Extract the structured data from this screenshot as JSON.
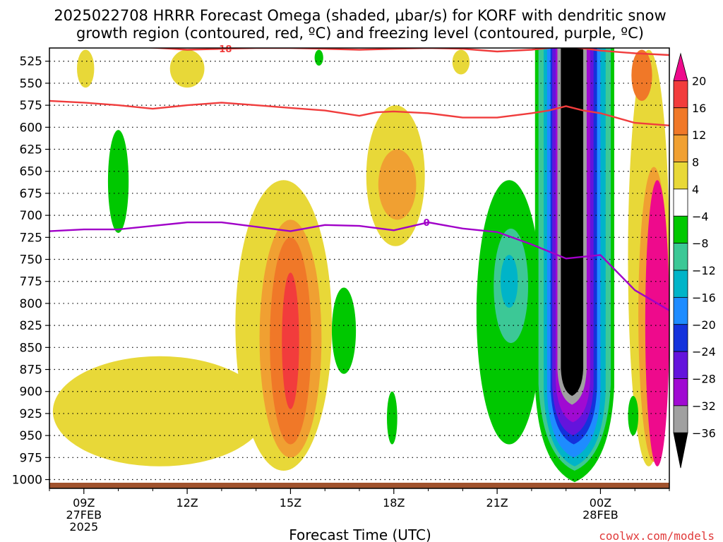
{
  "title": {
    "line1": "2025022708 HRRR Forecast Omega (shaded, μbar/s) for KORF with dendritic snow",
    "line2": "growth region (contoured, red, ºC) and freezing level (contoured, purple, ºC)"
  },
  "credit": "coolwx.com/models",
  "chart_data": {
    "type": "heatmap",
    "xlabel": "Forecast Time (UTC)",
    "x_range_hours": [
      -1.0,
      17.0
    ],
    "y_range_hpa": [
      1010,
      510
    ],
    "y_scale": "linear",
    "x_ticks": [
      {
        "x": 0,
        "lines": [
          "09Z",
          "27FEB",
          "2025"
        ]
      },
      {
        "x": 3,
        "lines": [
          "12Z"
        ]
      },
      {
        "x": 6,
        "lines": [
          "15Z"
        ]
      },
      {
        "x": 9,
        "lines": [
          "18Z"
        ]
      },
      {
        "x": 12,
        "lines": [
          "21Z"
        ]
      },
      {
        "x": 15,
        "lines": [
          "00Z",
          "28FEB"
        ]
      }
    ],
    "y_ticks": [
      525,
      550,
      575,
      600,
      625,
      650,
      675,
      700,
      725,
      750,
      775,
      800,
      825,
      850,
      875,
      900,
      925,
      950,
      975,
      1000
    ],
    "grid": "dotted horizontal at each pressure tick",
    "colorbar": {
      "levels": [
        "20",
        "16",
        "12",
        "8",
        "4",
        "−4",
        "−8",
        "−12",
        "−16",
        "−20",
        "−24",
        "−28",
        "−32",
        "−36"
      ],
      "colors": [
        "#ee0a8c",
        "#f23c3c",
        "#f07828",
        "#f0a032",
        "#e8d838",
        "#ffffff",
        "#00c800",
        "#3cc896",
        "#00b4c8",
        "#1e8cff",
        "#1432dc",
        "#6414dc",
        "#a00ad2",
        "#a0a0a0",
        "#000000"
      ],
      "position": "right"
    },
    "omega_regions": [
      {
        "value": 6,
        "color": "#e8d838",
        "t": [
          -0.9,
          5.3
        ],
        "p": [
          985,
          860
        ],
        "desc": "low-level warm conveyor"
      },
      {
        "value": 6,
        "color": "#e8d838",
        "t": [
          4.4,
          7.2
        ],
        "p": [
          990,
          660
        ]
      },
      {
        "value": 10,
        "color": "#f0a032",
        "t": [
          5.1,
          6.9
        ],
        "p": [
          975,
          705
        ]
      },
      {
        "value": 14,
        "color": "#f07828",
        "t": [
          5.4,
          6.6
        ],
        "p": [
          960,
          725
        ]
      },
      {
        "value": 18,
        "color": "#f23c3c",
        "t": [
          5.75,
          6.25
        ],
        "p": [
          920,
          765
        ]
      },
      {
        "value": 6,
        "color": "#e8d838",
        "t": [
          8.2,
          9.9
        ],
        "p": [
          735,
          575
        ]
      },
      {
        "value": 10,
        "color": "#f0a032",
        "t": [
          8.55,
          9.65
        ],
        "p": [
          705,
          625
        ]
      },
      {
        "value": 6,
        "color": "#e8d838",
        "t": [
          -0.2,
          0.3
        ],
        "p": [
          555,
          512
        ]
      },
      {
        "value": 6,
        "color": "#e8d838",
        "t": [
          2.5,
          3.5
        ],
        "p": [
          555,
          512
        ]
      },
      {
        "value": 6,
        "color": "#e8d838",
        "t": [
          10.7,
          11.2
        ],
        "p": [
          540,
          512
        ]
      },
      {
        "value": 6,
        "color": "#e8d838",
        "t": [
          15.8,
          17.0
        ],
        "p": [
          985,
          512
        ]
      },
      {
        "value": 10,
        "color": "#f0a032",
        "t": [
          16.1,
          17.0
        ],
        "p": [
          980,
          645
        ]
      },
      {
        "value": 20,
        "color": "#ee0a8c",
        "t": [
          16.3,
          17.0
        ],
        "p": [
          985,
          660
        ]
      },
      {
        "value": 14,
        "color": "#f07828",
        "t": [
          15.9,
          16.5
        ],
        "p": [
          570,
          512
        ]
      },
      {
        "value": -6,
        "color": "#00c800",
        "t": [
          0.7,
          1.3
        ],
        "p": [
          720,
          603
        ]
      },
      {
        "value": -6,
        "color": "#00c800",
        "t": [
          7.2,
          7.9
        ],
        "p": [
          880,
          782
        ]
      },
      {
        "value": -6,
        "color": "#00c800",
        "t": [
          8.8,
          9.1
        ],
        "p": [
          960,
          900
        ]
      },
      {
        "value": -6,
        "color": "#00c800",
        "t": [
          11.4,
          13.3
        ],
        "p": [
          960,
          660
        ]
      },
      {
        "value": -10,
        "color": "#3cc896",
        "t": [
          11.9,
          12.9
        ],
        "p": [
          845,
          715
        ]
      },
      {
        "value": -14,
        "color": "#00b4c8",
        "t": [
          12.1,
          12.6
        ],
        "p": [
          805,
          745
        ]
      },
      {
        "value": -6,
        "color": "#00c800",
        "t": [
          6.7,
          6.95
        ],
        "p": [
          530,
          512
        ]
      },
      {
        "value": -6,
        "color": "#00c800",
        "t": [
          15.8,
          16.1
        ],
        "p": [
          950,
          905
        ]
      }
    ],
    "omega_columns": [
      {
        "value": -6,
        "color": "#00c800",
        "t": [
          13.1,
          15.4
        ],
        "p_top": 512,
        "p_bottom": 1003
      },
      {
        "value": -10,
        "color": "#3cc896",
        "t": [
          13.2,
          15.3
        ],
        "p_top": 512,
        "p_bottom": 990
      },
      {
        "value": -14,
        "color": "#00b4c8",
        "t": [
          13.35,
          15.15
        ],
        "p_top": 512,
        "p_bottom": 985
      },
      {
        "value": -18,
        "color": "#1e8cff",
        "t": [
          13.45,
          15.0
        ],
        "p_top": 512,
        "p_bottom": 975
      },
      {
        "value": -22,
        "color": "#1432dc",
        "t": [
          13.55,
          14.9
        ],
        "p_top": 512,
        "p_bottom": 960
      },
      {
        "value": -26,
        "color": "#6414dc",
        "t": [
          13.6,
          14.8
        ],
        "p_top": 512,
        "p_bottom": 950
      },
      {
        "value": -30,
        "color": "#a00ad2",
        "t": [
          13.7,
          14.7
        ],
        "p_top": 512,
        "p_bottom": 935
      },
      {
        "value": -34,
        "color": "#a0a0a0",
        "t": [
          13.75,
          14.6
        ],
        "p_top": 512,
        "p_bottom": 915
      },
      {
        "value": -38,
        "color": "#000000",
        "t": [
          13.85,
          14.5
        ],
        "p_top": 512,
        "p_bottom": 905
      }
    ],
    "series": [
      {
        "name": "-18",
        "color": "#f03c3c",
        "t": [
          1.7,
          2.2,
          3.0,
          4.0,
          5.0,
          6.0,
          7.0,
          8.0,
          9.0,
          10.0,
          11.0,
          12.0,
          13.0,
          14.0,
          15.0,
          16.0,
          17.0
        ],
        "p": [
          509,
          510,
          512,
          511,
          510,
          510,
          511,
          512,
          511,
          510,
          511,
          514,
          512,
          508,
          513,
          516,
          518
        ]
      },
      {
        "name": "-12",
        "color": "#f03c3c",
        "t": [
          -1.0,
          0.0,
          1.0,
          2.0,
          3.0,
          4.0,
          5.0,
          6.0,
          7.0,
          8.0,
          8.5,
          9.0,
          10.0,
          11.0,
          12.0,
          13.0,
          13.5,
          14.0,
          14.5,
          15.0,
          16.0,
          17.0
        ],
        "p": [
          570,
          572,
          575,
          579,
          575,
          572,
          575,
          578,
          581,
          587,
          583,
          582,
          584,
          589,
          589,
          584,
          581,
          576,
          581,
          584,
          595,
          598
        ]
      },
      {
        "name": "0",
        "color": "#a000c8",
        "t": [
          -1.0,
          0.0,
          1.0,
          2.0,
          3.0,
          4.0,
          5.0,
          6.0,
          7.0,
          8.0,
          9.0,
          10.0,
          11.0,
          12.0,
          13.0,
          14.0,
          15.0,
          16.0,
          17.0
        ],
        "p": [
          718,
          716,
          716,
          712,
          708,
          708,
          713,
          718,
          711,
          712,
          717,
          708,
          715,
          719,
          733,
          749,
          745,
          785,
          808
        ]
      }
    ],
    "contour_labels": [
      {
        "text": "−18",
        "t": 4.0,
        "p": 511,
        "color": "#f03c3c"
      },
      {
        "text": "0",
        "t": 9.95,
        "p": 708,
        "color": "#a000c8"
      }
    ]
  }
}
